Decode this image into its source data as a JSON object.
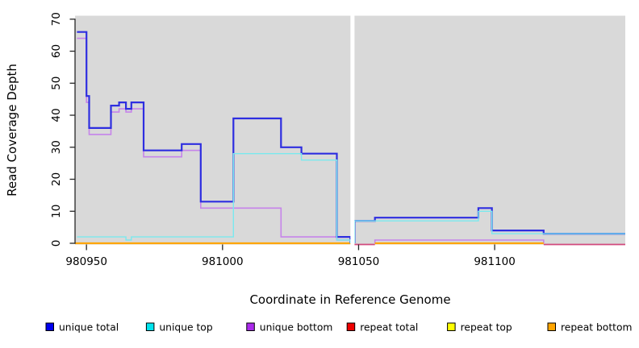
{
  "figure": {
    "background": "#ffffff",
    "panel_background": "#d9d9d9"
  },
  "chart_data": {
    "type": "line",
    "subtype": "step-coverage-plot",
    "title": "",
    "xlabel": "Coordinate in Reference Genome",
    "ylabel": "Read Coverage Depth",
    "x_ticks": [
      980950,
      981000,
      981050,
      981100
    ],
    "y_ticks": [
      0,
      10,
      20,
      30,
      40,
      50,
      60,
      70
    ],
    "xlim": [
      980945.8,
      981148
    ],
    "ylim": [
      0,
      71
    ],
    "grid": false,
    "legend_position": "bottom",
    "gap_region": {
      "from": 981047,
      "to": 981048.5,
      "color": "#ffffff"
    },
    "series": [
      {
        "name": "unique total",
        "legend_color": "#0000ee",
        "line_color": "#2e2ee0",
        "segments": [
          [
            980946.5,
            980950,
            66
          ],
          [
            980950,
            980951,
            46
          ],
          [
            980951,
            980959,
            36
          ],
          [
            980959,
            980962,
            43
          ],
          [
            980962,
            980964.5,
            44
          ],
          [
            980964.5,
            980966.5,
            42
          ],
          [
            980966.5,
            980971,
            44
          ],
          [
            980971,
            980985,
            29
          ],
          [
            980985,
            980992,
            31
          ],
          [
            980992,
            981004,
            13
          ],
          [
            981004,
            981021.5,
            39
          ],
          [
            981021.5,
            981029,
            30
          ],
          [
            981029,
            981042,
            28
          ],
          [
            981042,
            981047,
            2
          ],
          [
            981048.5,
            981056,
            7
          ],
          [
            981056,
            981094,
            8
          ],
          [
            981094,
            981099,
            11
          ],
          [
            981099,
            981118,
            4
          ],
          [
            981118,
            981148,
            3
          ]
        ]
      },
      {
        "name": "unique top",
        "legend_color": "#00e4ee",
        "line_color": "#7ae9ee",
        "segments": [
          [
            980946.5,
            980964.5,
            2
          ],
          [
            980964.5,
            980966.5,
            1
          ],
          [
            980966.5,
            981004,
            2
          ],
          [
            981004,
            981029,
            28
          ],
          [
            981029,
            981042,
            26
          ],
          [
            981042,
            981047,
            1
          ],
          [
            981048.5,
            981094,
            7
          ],
          [
            981094,
            981099,
            10
          ],
          [
            981099,
            981118,
            3
          ],
          [
            981118,
            981148,
            3
          ]
        ]
      },
      {
        "name": "unique bottom",
        "legend_color": "#ab2aec",
        "line_color": "#c684ea",
        "segments": [
          [
            980946.5,
            980950,
            64
          ],
          [
            980950,
            980951,
            44
          ],
          [
            980951,
            980959,
            34
          ],
          [
            980959,
            980962,
            41
          ],
          [
            980962,
            980964.5,
            42
          ],
          [
            980964.5,
            980966.5,
            41
          ],
          [
            980966.5,
            980971,
            42
          ],
          [
            980971,
            980985,
            27
          ],
          [
            980985,
            980992,
            29
          ],
          [
            980992,
            981021.5,
            11
          ],
          [
            981021.5,
            981042,
            2
          ],
          [
            981042,
            981047,
            1
          ],
          [
            981048.5,
            981056,
            0
          ],
          [
            981056,
            981118,
            1
          ],
          [
            981118,
            981148,
            0
          ]
        ]
      },
      {
        "name": "repeat total",
        "legend_color": "#ee0000",
        "line_color": "#ee0000",
        "segments": [
          [
            980945.8,
            981148,
            0
          ]
        ]
      },
      {
        "name": "repeat top",
        "legend_color": "#ffff00",
        "line_color": "#ffff00",
        "segments": [
          [
            980945.8,
            981148,
            0
          ]
        ]
      },
      {
        "name": "repeat bottom",
        "legend_color": "#ffa500",
        "line_color": "#ffa500",
        "segments": [
          [
            980945.8,
            981148,
            0
          ]
        ]
      }
    ],
    "baseline": {
      "orange_color": "#ffa500",
      "crimson_color": "#d2497d",
      "orange_spans": [
        [
          980945.8,
          981048.5
        ],
        [
          981056,
          981118
        ]
      ],
      "crimson_spans": [
        [
          981048.5,
          981056
        ],
        [
          981118,
          981148
        ]
      ]
    }
  }
}
